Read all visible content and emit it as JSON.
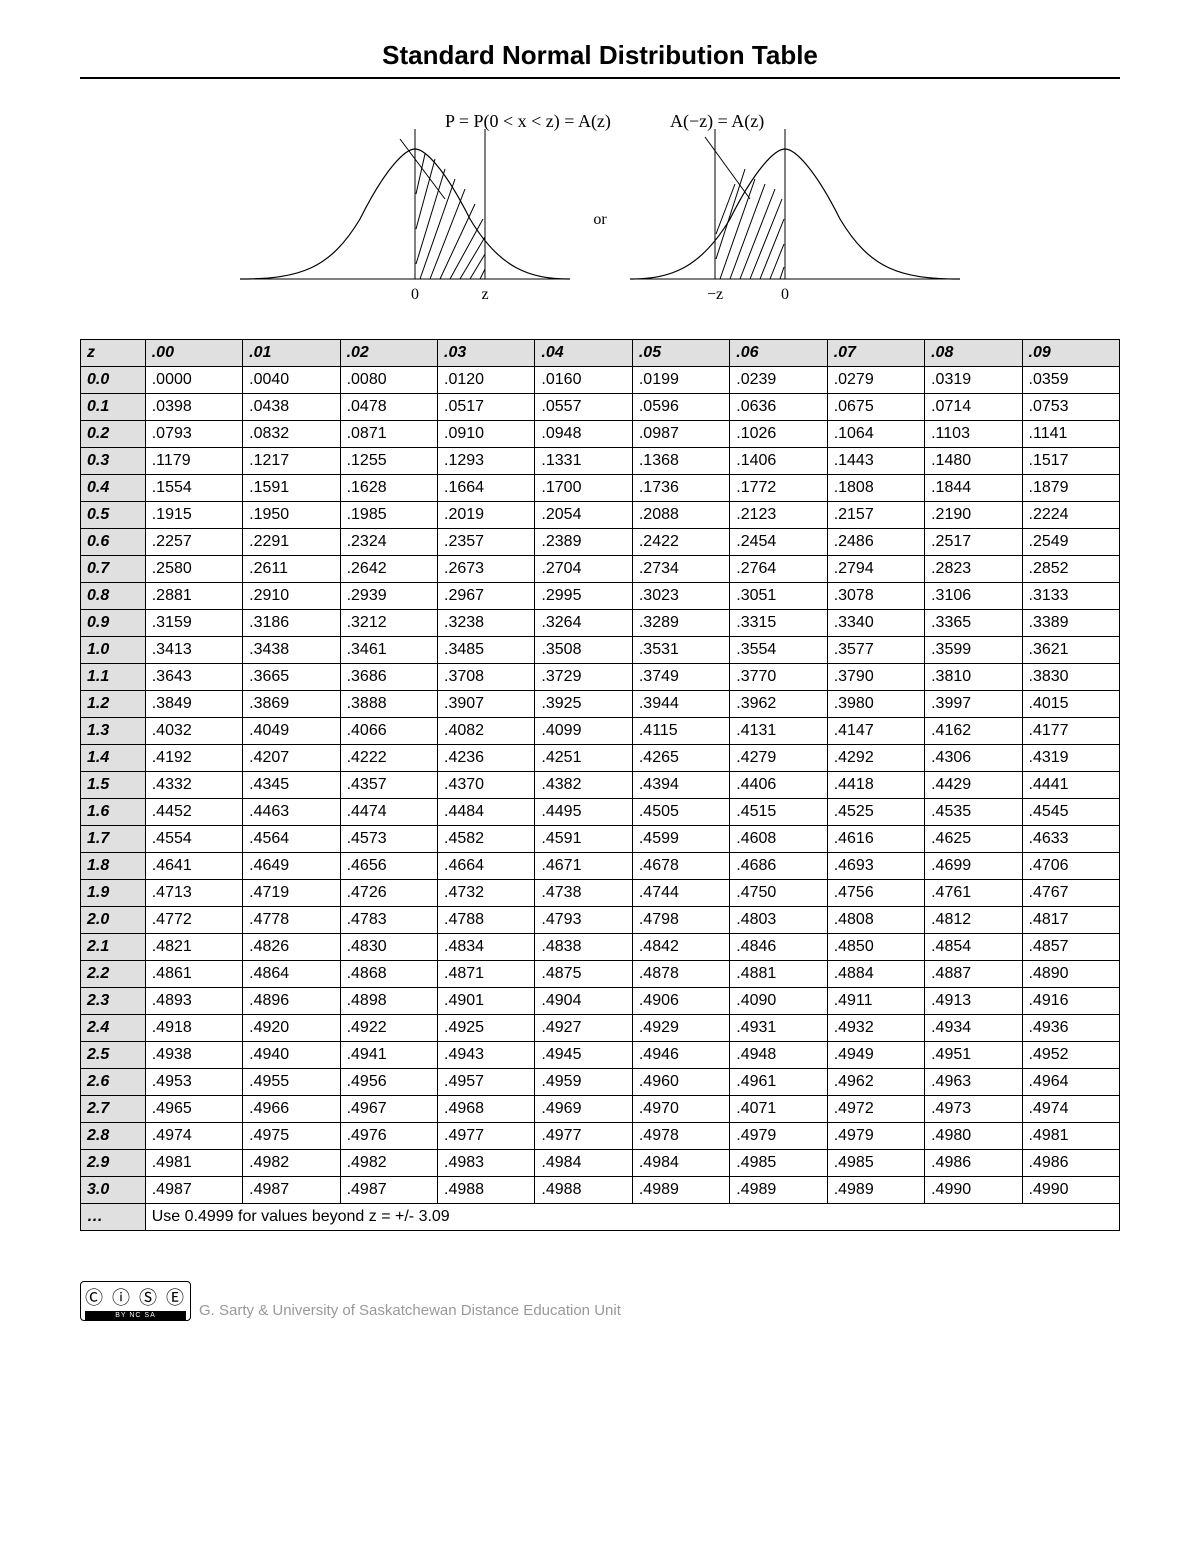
{
  "title": "Standard Normal Distribution Table",
  "diagram": {
    "formula_left": "P = P(0 < x < z) = A(z)",
    "formula_right": "A(−z) = A(z)",
    "or_label": "or",
    "zero_label": "0",
    "z_label": "z",
    "neg_z_label": "−z",
    "curve_color": "#000000",
    "hatch_color": "#000000",
    "font_family": "serif",
    "font_size_formula": 18,
    "font_size_axis": 16
  },
  "table": {
    "columns": [
      "z",
      ".00",
      ".01",
      ".02",
      ".03",
      ".04",
      ".05",
      ".06",
      ".07",
      ".08",
      ".09"
    ],
    "row_heads": [
      "0.0",
      "0.1",
      "0.2",
      "0.3",
      "0.4",
      "0.5",
      "0.6",
      "0.7",
      "0.8",
      "0.9",
      "1.0",
      "1.1",
      "1.2",
      "1.3",
      "1.4",
      "1.5",
      "1.6",
      "1.7",
      "1.8",
      "1.9",
      "2.0",
      "2.1",
      "2.2",
      "2.3",
      "2.4",
      "2.5",
      "2.6",
      "2.7",
      "2.8",
      "2.9",
      "3.0"
    ],
    "rows": [
      [
        ".0000",
        ".0040",
        ".0080",
        ".0120",
        ".0160",
        ".0199",
        ".0239",
        ".0279",
        ".0319",
        ".0359"
      ],
      [
        ".0398",
        ".0438",
        ".0478",
        ".0517",
        ".0557",
        ".0596",
        ".0636",
        ".0675",
        ".0714",
        ".0753"
      ],
      [
        ".0793",
        ".0832",
        ".0871",
        ".0910",
        ".0948",
        ".0987",
        ".1026",
        ".1064",
        ".1103",
        ".1141"
      ],
      [
        ".1179",
        ".1217",
        ".1255",
        ".1293",
        ".1331",
        ".1368",
        ".1406",
        ".1443",
        ".1480",
        ".1517"
      ],
      [
        ".1554",
        ".1591",
        ".1628",
        ".1664",
        ".1700",
        ".1736",
        ".1772",
        ".1808",
        ".1844",
        ".1879"
      ],
      [
        ".1915",
        ".1950",
        ".1985",
        ".2019",
        ".2054",
        ".2088",
        ".2123",
        ".2157",
        ".2190",
        ".2224"
      ],
      [
        ".2257",
        ".2291",
        ".2324",
        ".2357",
        ".2389",
        ".2422",
        ".2454",
        ".2486",
        ".2517",
        ".2549"
      ],
      [
        ".2580",
        ".2611",
        ".2642",
        ".2673",
        ".2704",
        ".2734",
        ".2764",
        ".2794",
        ".2823",
        ".2852"
      ],
      [
        ".2881",
        ".2910",
        ".2939",
        ".2967",
        ".2995",
        ".3023",
        ".3051",
        ".3078",
        ".3106",
        ".3133"
      ],
      [
        ".3159",
        ".3186",
        ".3212",
        ".3238",
        ".3264",
        ".3289",
        ".3315",
        ".3340",
        ".3365",
        ".3389"
      ],
      [
        ".3413",
        ".3438",
        ".3461",
        ".3485",
        ".3508",
        ".3531",
        ".3554",
        ".3577",
        ".3599",
        ".3621"
      ],
      [
        ".3643",
        ".3665",
        ".3686",
        ".3708",
        ".3729",
        ".3749",
        ".3770",
        ".3790",
        ".3810",
        ".3830"
      ],
      [
        ".3849",
        ".3869",
        ".3888",
        ".3907",
        ".3925",
        ".3944",
        ".3962",
        ".3980",
        ".3997",
        ".4015"
      ],
      [
        ".4032",
        ".4049",
        ".4066",
        ".4082",
        ".4099",
        ".4115",
        ".4131",
        ".4147",
        ".4162",
        ".4177"
      ],
      [
        ".4192",
        ".4207",
        ".4222",
        ".4236",
        ".4251",
        ".4265",
        ".4279",
        ".4292",
        ".4306",
        ".4319"
      ],
      [
        ".4332",
        ".4345",
        ".4357",
        ".4370",
        ".4382",
        ".4394",
        ".4406",
        ".4418",
        ".4429",
        ".4441"
      ],
      [
        ".4452",
        ".4463",
        ".4474",
        ".4484",
        ".4495",
        ".4505",
        ".4515",
        ".4525",
        ".4535",
        ".4545"
      ],
      [
        ".4554",
        ".4564",
        ".4573",
        ".4582",
        ".4591",
        ".4599",
        ".4608",
        ".4616",
        ".4625",
        ".4633"
      ],
      [
        ".4641",
        ".4649",
        ".4656",
        ".4664",
        ".4671",
        ".4678",
        ".4686",
        ".4693",
        ".4699",
        ".4706"
      ],
      [
        ".4713",
        ".4719",
        ".4726",
        ".4732",
        ".4738",
        ".4744",
        ".4750",
        ".4756",
        ".4761",
        ".4767"
      ],
      [
        ".4772",
        ".4778",
        ".4783",
        ".4788",
        ".4793",
        ".4798",
        ".4803",
        ".4808",
        ".4812",
        ".4817"
      ],
      [
        ".4821",
        ".4826",
        ".4830",
        ".4834",
        ".4838",
        ".4842",
        ".4846",
        ".4850",
        ".4854",
        ".4857"
      ],
      [
        ".4861",
        ".4864",
        ".4868",
        ".4871",
        ".4875",
        ".4878",
        ".4881",
        ".4884",
        ".4887",
        ".4890"
      ],
      [
        ".4893",
        ".4896",
        ".4898",
        ".4901",
        ".4904",
        ".4906",
        ".4090",
        ".4911",
        ".4913",
        ".4916"
      ],
      [
        ".4918",
        ".4920",
        ".4922",
        ".4925",
        ".4927",
        ".4929",
        ".4931",
        ".4932",
        ".4934",
        ".4936"
      ],
      [
        ".4938",
        ".4940",
        ".4941",
        ".4943",
        ".4945",
        ".4946",
        ".4948",
        ".4949",
        ".4951",
        ".4952"
      ],
      [
        ".4953",
        ".4955",
        ".4956",
        ".4957",
        ".4959",
        ".4960",
        ".4961",
        ".4962",
        ".4963",
        ".4964"
      ],
      [
        ".4965",
        ".4966",
        ".4967",
        ".4968",
        ".4969",
        ".4970",
        ".4071",
        ".4972",
        ".4973",
        ".4974"
      ],
      [
        ".4974",
        ".4975",
        ".4976",
        ".4977",
        ".4977",
        ".4978",
        ".4979",
        ".4979",
        ".4980",
        ".4981"
      ],
      [
        ".4981",
        ".4982",
        ".4982",
        ".4983",
        ".4984",
        ".4984",
        ".4985",
        ".4985",
        ".4986",
        ".4986"
      ],
      [
        ".4987",
        ".4987",
        ".4987",
        ".4988",
        ".4988",
        ".4989",
        ".4989",
        ".4989",
        ".4990",
        ".4990"
      ]
    ],
    "footer_head": "…",
    "footer_text": "Use 0.4999 for values beyond z = +/- 3.09",
    "header_bg": "#e0e0e0",
    "border_color": "#000000",
    "font_size": 16
  },
  "footer": {
    "cc_icons": "Ⓒ ⓘ Ⓢ Ⓔ",
    "cc_bar": "BY  NC  SA",
    "attribution": "G. Sarty & University of Saskatchewan Distance Education Unit",
    "attribution_color": "#999999"
  }
}
